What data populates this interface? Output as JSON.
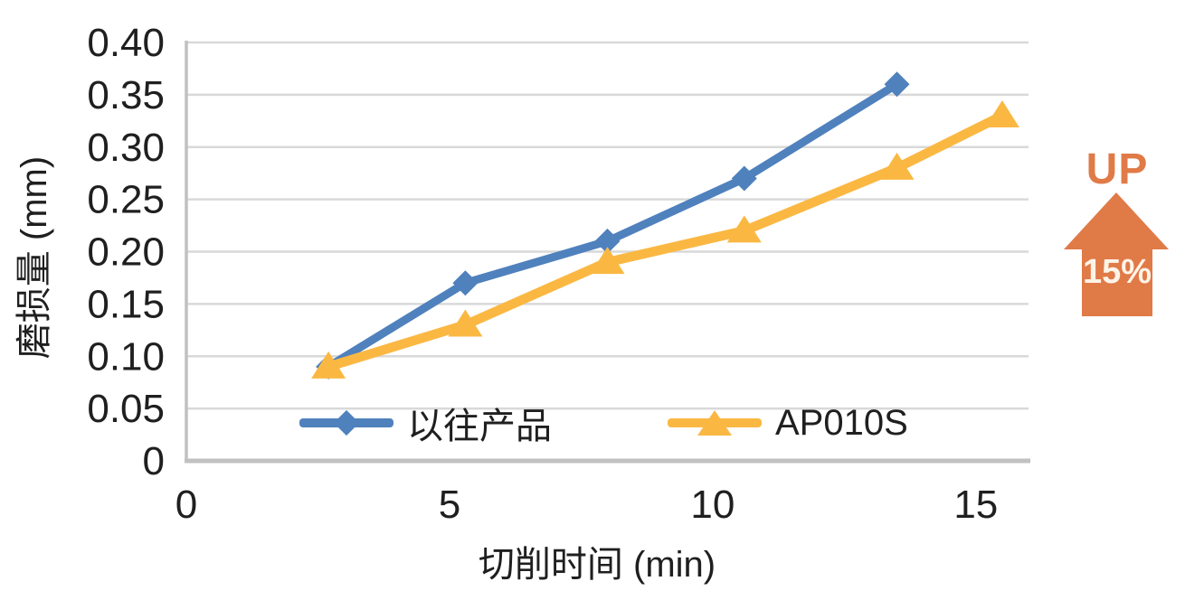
{
  "chart_data": {
    "type": "line",
    "title": "",
    "xlabel": "切削时间 (min)",
    "ylabel": "磨损量 (mm)",
    "xlim": [
      0,
      16
    ],
    "ylim": [
      0,
      0.4
    ],
    "xticks": {
      "values": [
        0,
        5,
        10,
        15
      ],
      "labels": [
        "0",
        "5",
        "10",
        "15"
      ]
    },
    "yticks": {
      "values": [
        0,
        0.05,
        0.1,
        0.15,
        0.2,
        0.25,
        0.3,
        0.35,
        0.4
      ],
      "labels": [
        "0",
        "0.05",
        "0.10",
        "0.15",
        "0.20",
        "0.25",
        "0.30",
        "0.35",
        "0.40"
      ]
    },
    "grid": "horizontal",
    "legend_position": "bottom-inside",
    "series": [
      {
        "name": "以往产品",
        "color": "#4F81BD",
        "marker": "diamond",
        "line_width": 9,
        "x": [
          2.7,
          5.3,
          8.0,
          10.6,
          13.5
        ],
        "y": [
          0.09,
          0.17,
          0.21,
          0.27,
          0.36
        ]
      },
      {
        "name": "AP010S",
        "color": "#FAB843",
        "marker": "triangle",
        "line_width": 10.5,
        "x": [
          2.7,
          5.3,
          8.0,
          10.6,
          13.5,
          15.5
        ],
        "y": [
          0.09,
          0.13,
          0.19,
          0.22,
          0.28,
          0.33
        ]
      }
    ]
  },
  "badge": {
    "label": "UP",
    "value": "15%",
    "arrow_color": "#E07A47",
    "value_text_color": "#FDF4E8"
  },
  "style": {
    "grid_color": "#D9D9D9",
    "axis_color": "#C1C1C1",
    "text_color": "#1F1F1F"
  }
}
